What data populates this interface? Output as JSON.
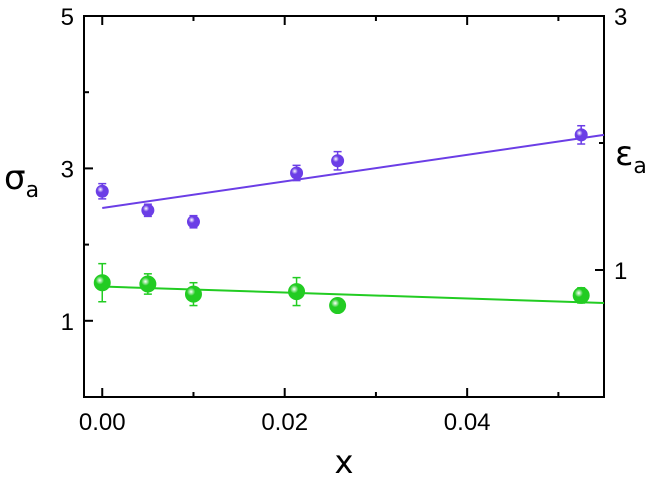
{
  "chart_data": {
    "type": "scatter",
    "xlabel": "x",
    "ylabel_left": {
      "main": "σ",
      "sub": "a"
    },
    "ylabel_right": {
      "main": "ε",
      "sub": "a"
    },
    "xlim": [
      -0.002,
      0.055
    ],
    "ylim_left": [
      0,
      5
    ],
    "ylim_right": [
      0,
      3
    ],
    "x_ticks": [
      0.0,
      0.02,
      0.04
    ],
    "x_tick_labels": [
      "0.00",
      "0.02",
      "0.04"
    ],
    "y_left_ticks": [
      1,
      3,
      5
    ],
    "y_right_ticks": [
      1,
      3
    ],
    "grid": false,
    "legend": "none",
    "series": [
      {
        "axis": "left",
        "color": "#6b3ee6",
        "x": [
          0.0,
          0.005,
          0.01,
          0.0213,
          0.0258,
          0.0525
        ],
        "y": [
          2.7,
          2.45,
          2.3,
          2.94,
          3.1,
          3.44
        ],
        "yerr": [
          0.1,
          0.08,
          0.08,
          0.1,
          0.12,
          0.12
        ],
        "fit": {
          "x": [
            0.0,
            0.055
          ],
          "y": [
            2.48,
            3.44
          ]
        }
      },
      {
        "axis": "right",
        "color": "#22cc22",
        "x": [
          0.0,
          0.005,
          0.01,
          0.0213,
          0.0258,
          0.0525
        ],
        "y": [
          0.9,
          0.89,
          0.81,
          0.83,
          0.72,
          0.8
        ],
        "yerr": [
          0.15,
          0.08,
          0.09,
          0.11,
          0.0,
          0.06
        ],
        "fit": {
          "x": [
            0.0,
            0.055
          ],
          "y": [
            0.87,
            0.74
          ]
        }
      }
    ]
  }
}
